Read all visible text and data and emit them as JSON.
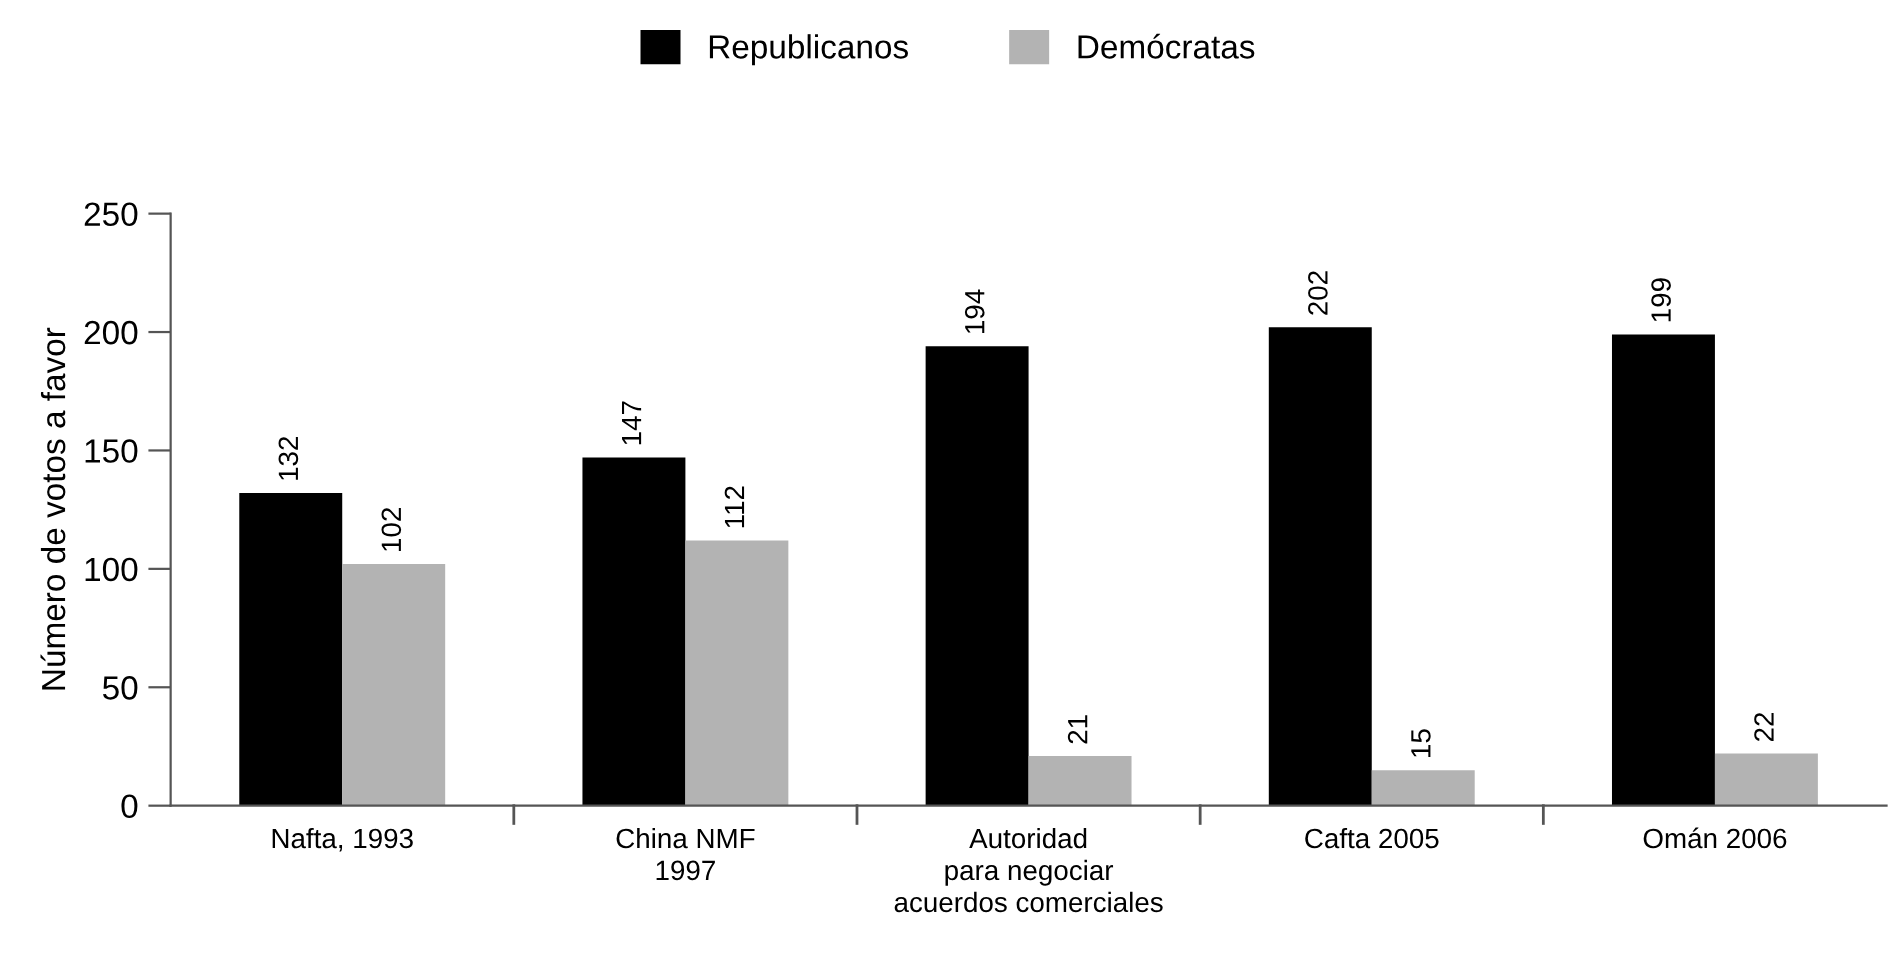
{
  "chart_data": {
    "type": "bar",
    "ylabel": "Número de votos a favor",
    "categories": [
      "Nafta, 1993",
      "China NMF\n1997",
      "Autoridad\npara negociar\nacuerdos comerciales",
      "Cafta 2005",
      "Omán 2006"
    ],
    "series": [
      {
        "name": "Republicanos",
        "color": "#000000",
        "values": [
          132,
          147,
          194,
          202,
          199
        ]
      },
      {
        "name": "Demócratas",
        "color": "#b3b3b3",
        "values": [
          102,
          112,
          21,
          15,
          22
        ]
      }
    ],
    "ylim": [
      0,
      250
    ],
    "yticks": [
      0,
      50,
      100,
      150,
      200,
      250
    ],
    "grid": false,
    "legend": "top",
    "data_labels": true
  }
}
